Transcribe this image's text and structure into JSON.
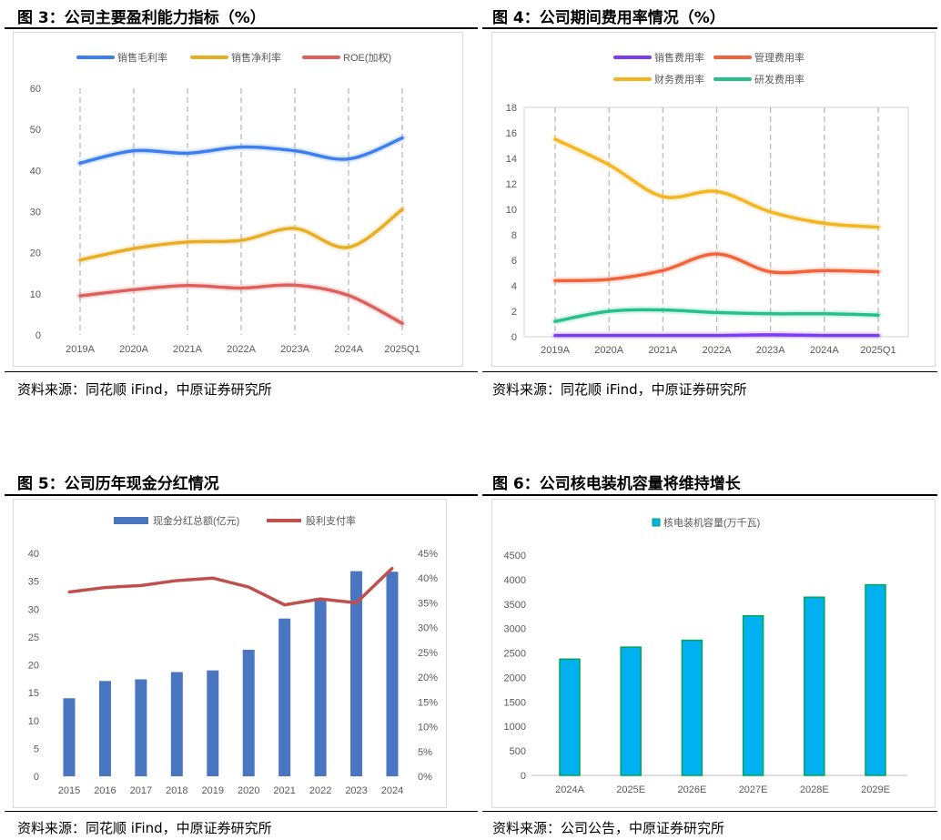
{
  "figures": [
    {
      "title": "图 3：公司主要盈利能力指标（%）",
      "source": "资料来源：同花顺 iFind，中原证券研究所",
      "chart_data": {
        "type": "line",
        "categories": [
          "2019A",
          "2020A",
          "2021A",
          "2022A",
          "2023A",
          "2024A",
          "2025Q1"
        ],
        "ylim": [
          0,
          60
        ],
        "yticks": [
          0,
          10,
          20,
          30,
          40,
          50,
          60
        ],
        "legend_position": "top",
        "grid": "vertical dashed",
        "series": [
          {
            "name": "销售毛利率",
            "color": "#3d7ef0",
            "values": [
              41.8,
              44.8,
              44.2,
              45.7,
              44.8,
              42.8,
              47.9
            ]
          },
          {
            "name": "销售净利率",
            "color": "#e8ad23",
            "values": [
              18.2,
              21.0,
              22.6,
              23.0,
              25.9,
              21.3,
              30.5
            ]
          },
          {
            "name": "ROE(加权)",
            "color": "#df5f5c",
            "values": [
              9.5,
              11.0,
              12.0,
              11.4,
              12.1,
              9.6,
              2.8
            ]
          }
        ]
      }
    },
    {
      "title": "图 4：公司期间费用率情况（%）",
      "source": "资料来源：同花顺 iFind，中原证券研究所",
      "chart_data": {
        "type": "line",
        "categories": [
          "2019A",
          "2020A",
          "2021A",
          "2022A",
          "2023A",
          "2024A",
          "2025Q1"
        ],
        "ylim": [
          0,
          18
        ],
        "yticks": [
          0,
          2,
          4,
          6,
          8,
          10,
          12,
          14,
          16,
          18
        ],
        "legend_position": "top",
        "grid": "vertical dashed",
        "series": [
          {
            "name": "销售费用率",
            "color": "#7d3cf0",
            "values": [
              0.1,
              0.1,
              0.1,
              0.1,
              0.15,
              0.1,
              0.1
            ]
          },
          {
            "name": "管理费用率",
            "color": "#f4623a",
            "values": [
              4.4,
              4.5,
              5.2,
              6.5,
              5.1,
              5.2,
              5.1
            ]
          },
          {
            "name": "财务费用率",
            "color": "#f5b520",
            "values": [
              15.5,
              13.5,
              11.0,
              11.4,
              9.8,
              8.9,
              8.6
            ]
          },
          {
            "name": "研发费用率",
            "color": "#26c08e",
            "values": [
              1.2,
              2.0,
              2.1,
              1.9,
              1.8,
              1.8,
              1.7
            ]
          }
        ]
      }
    },
    {
      "title": "图 5：公司历年现金分红情况",
      "source": "资料来源：同花顺 iFind，中原证券研究所",
      "chart_data": {
        "type": "bar",
        "categories": [
          "2015",
          "2016",
          "2017",
          "2018",
          "2019",
          "2020",
          "2021",
          "2022",
          "2023",
          "2024"
        ],
        "ylim": [
          0,
          40
        ],
        "yticks": [
          0,
          5,
          10,
          15,
          20,
          25,
          30,
          35,
          40
        ],
        "y2lim": [
          0,
          45
        ],
        "y2ticks": [
          "0%",
          "5%",
          "10%",
          "15%",
          "20%",
          "25%",
          "30%",
          "35%",
          "40%",
          "45%"
        ],
        "legend_position": "top",
        "series": [
          {
            "name": "现金分红总额(亿元)",
            "type": "bar",
            "axis": "left",
            "color": "#4a76c1",
            "values": [
              14.0,
              17.1,
              17.4,
              18.7,
              19.0,
              22.7,
              28.3,
              32.0,
              36.8,
              36.7
            ]
          },
          {
            "name": "股利支付率",
            "type": "line",
            "axis": "right",
            "color": "#c0504d",
            "values": [
              37.2,
              38.1,
              38.5,
              39.5,
              40.0,
              38.2,
              34.6,
              35.8,
              35.0,
              42.0
            ]
          }
        ]
      }
    },
    {
      "title": "图 6：公司核电装机容量将维持增长",
      "source": "资料来源：公司公告，中原证券研究所",
      "chart_data": {
        "type": "bar",
        "categories": [
          "2024A",
          "2025E",
          "2026E",
          "2027E",
          "2028E",
          "2029E"
        ],
        "ylim": [
          0,
          4500
        ],
        "yticks": [
          0,
          500,
          1000,
          1500,
          2000,
          2500,
          3000,
          3500,
          4000,
          4500
        ],
        "legend_position": "top",
        "series": [
          {
            "name": "核电装机容量(万千瓦)",
            "color": "#00b0f0",
            "edge": "#00a651",
            "values": [
              2375,
              2620,
              2760,
              3260,
              3640,
              3895
            ]
          }
        ]
      }
    }
  ]
}
